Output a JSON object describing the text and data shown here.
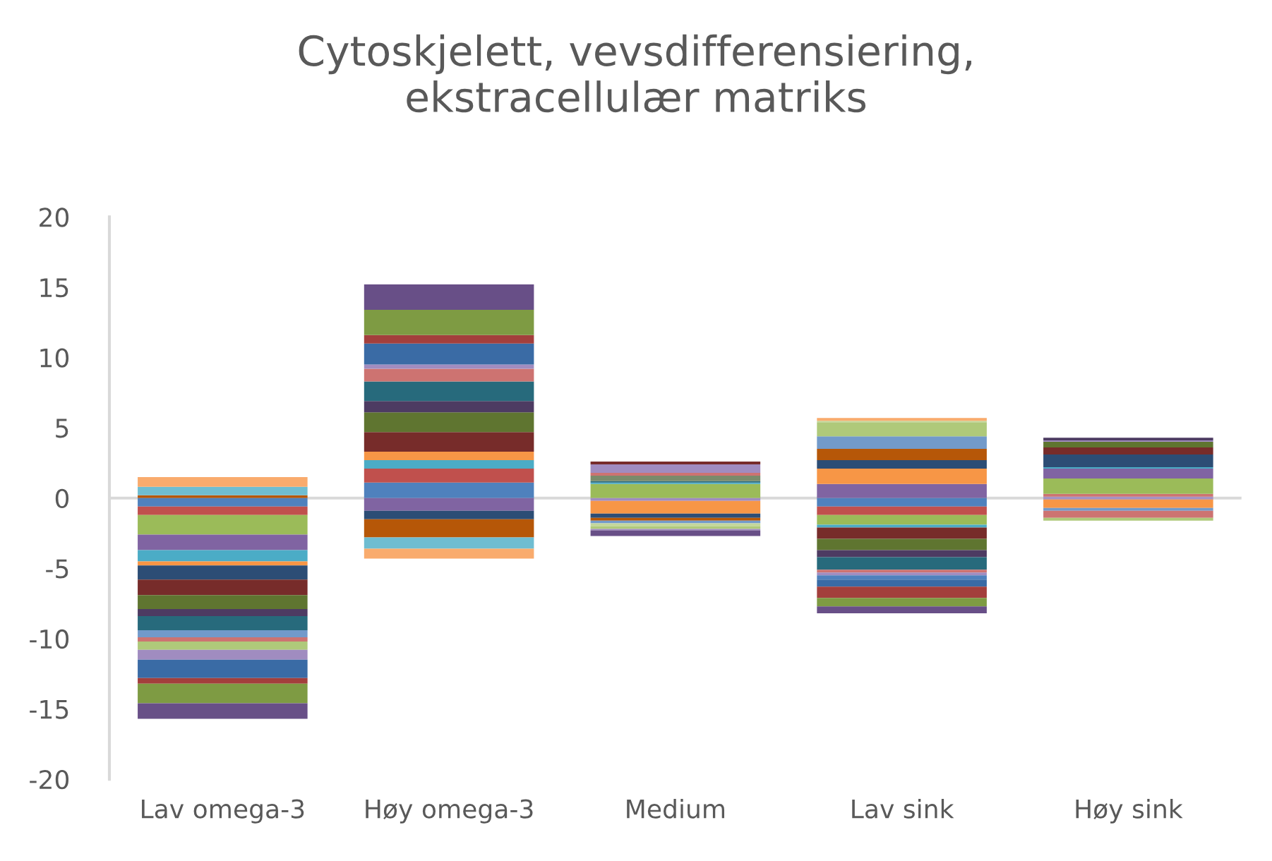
{
  "chart_data": {
    "type": "bar",
    "stacked": true,
    "title": "Cytoskjelett, vevsdifferensiering,\nekstracellulær matriks",
    "categories": [
      "Lav omega-3",
      "Høy omega-3",
      "Medium",
      "Lav sink",
      "Høy sink"
    ],
    "ylim": [
      -20,
      20
    ],
    "yticks": [
      -20,
      -15,
      -10,
      -5,
      0,
      5,
      10,
      15,
      20
    ],
    "grid": false,
    "ref_lines": [
      {
        "axis": "y",
        "value": 0,
        "color": "#d9d9d9"
      }
    ],
    "series": [
      {
        "values": [
          0.2,
          1.1,
          1.0,
          1.0,
          0.1
        ],
        "colors": [
          "#b65708",
          "#4f81bd",
          "#9bbb59",
          "#8064a2",
          "#a08cc0"
        ]
      },
      {
        "values": [
          0.6,
          1.0,
          0.1,
          1.1,
          0.2
        ],
        "colors": [
          "#6fbdd1",
          "#c0504d",
          "#4bacc6",
          "#f79646",
          "#cd7371"
        ]
      },
      {
        "values": [
          0.7,
          0.6,
          0.1,
          0.6,
          1.1
        ],
        "colors": [
          "#f9ab6d",
          "#4bacc6",
          "#276a7c",
          "#2c4d75",
          "#9bbb59"
        ]
      },
      {
        "values": [
          null,
          0.6,
          0.4,
          0.8,
          0.7
        ],
        "colors": [
          null,
          "#f79646",
          "#7a8b6b",
          "#b65708",
          "#8064a2"
        ]
      },
      {
        "values": [
          null,
          1.4,
          0.2,
          0.9,
          0.1
        ],
        "colors": [
          null,
          "#772c2a",
          "#cd7371",
          "#729aca",
          "#4bacc6"
        ]
      },
      {
        "values": [
          null,
          1.4,
          0.6,
          1.0,
          0.9
        ],
        "colors": [
          null,
          "#5f7530",
          "#a08cc0",
          "#afc97a",
          "#2c4d75"
        ]
      },
      {
        "values": [
          null,
          0.8,
          0.2,
          0.1,
          0.5
        ],
        "colors": [
          null,
          "#4d3b62",
          "#772c2a",
          "#c4d79b",
          "#772c2a"
        ]
      },
      {
        "values": [
          null,
          1.4,
          null,
          0.2,
          0.4
        ],
        "colors": [
          null,
          "#276a7c",
          null,
          "#f9ab6d",
          "#5f7530"
        ]
      },
      {
        "values": [
          null,
          0.9,
          null,
          null,
          0.1
        ],
        "colors": [
          null,
          "#cd7371",
          null,
          null,
          "#a08cc0"
        ]
      },
      {
        "values": [
          null,
          0.3,
          null,
          null,
          0.2
        ],
        "colors": [
          null,
          "#a08cc0",
          null,
          null,
          "#4d3b62"
        ]
      },
      {
        "values": [
          null,
          1.5,
          null,
          null,
          null
        ],
        "colors": [
          null,
          "#3a6ba5",
          null,
          null,
          null
        ]
      },
      {
        "values": [
          null,
          0.6,
          null,
          null,
          null
        ],
        "colors": [
          null,
          "#a33f3c",
          null,
          null,
          null
        ]
      },
      {
        "values": [
          null,
          1.8,
          null,
          null,
          null
        ],
        "colors": [
          null,
          "#7e9b43",
          null,
          null,
          null
        ]
      },
      {
        "values": [
          null,
          1.8,
          null,
          null,
          null
        ],
        "colors": [
          null,
          "#684f87",
          null,
          null,
          null
        ]
      },
      {
        "values": [
          -0.6,
          -0.9,
          -0.2,
          -0.6,
          -0.1
        ],
        "colors": [
          "#4f81bd",
          "#8064a2",
          "#a08cc0",
          "#4f81bd",
          "#a08cc0"
        ]
      },
      {
        "values": [
          -0.6,
          -0.6,
          -0.9,
          -0.6,
          -0.6
        ],
        "colors": [
          "#c0504d",
          "#2c4d75",
          "#f79646",
          "#c0504d",
          "#f79646"
        ]
      },
      {
        "values": [
          -1.4,
          -1.3,
          -0.3,
          -0.7,
          -0.2
        ],
        "colors": [
          "#9bbb59",
          "#b65708",
          "#2c4d75",
          "#9bbb59",
          "#729aca"
        ]
      },
      {
        "values": [
          -1.1,
          -0.8,
          -0.2,
          -0.2,
          -0.5
        ],
        "colors": [
          "#8064a2",
          "#6fbdd1",
          "#b65708",
          "#4bacc6",
          "#cd7371"
        ]
      },
      {
        "values": [
          -0.8,
          -0.7,
          -0.2,
          -0.8,
          -0.2
        ],
        "colors": [
          "#4bacc6",
          "#f9ab6d",
          "#729aca",
          "#772c2a",
          "#afc97a"
        ]
      },
      {
        "values": [
          -0.3,
          null,
          -0.2,
          -0.8,
          null
        ],
        "colors": [
          "#f79646",
          null,
          "#c4d79b",
          "#5f7530",
          null
        ]
      },
      {
        "values": [
          -1.0,
          null,
          -0.2,
          -0.5,
          null
        ],
        "colors": [
          "#2c4d75",
          null,
          "#afc97a",
          "#4d3b62",
          null
        ]
      },
      {
        "values": [
          -1.1,
          null,
          -0.1,
          -0.9,
          null
        ],
        "colors": [
          "#772c2a",
          null,
          "#a08cc0",
          "#276a7c",
          null
        ]
      },
      {
        "values": [
          -1.0,
          null,
          -0.4,
          -0.2,
          null
        ],
        "colors": [
          "#5f7530",
          null,
          "#684f87",
          "#cd7371",
          null
        ]
      },
      {
        "values": [
          -0.5,
          null,
          null,
          -0.2,
          null
        ],
        "colors": [
          "#4d3b62",
          null,
          null,
          "#a08cc0",
          null
        ]
      },
      {
        "values": [
          -1.0,
          null,
          null,
          -0.3,
          null
        ],
        "colors": [
          "#276a7c",
          null,
          null,
          "#4f81bd",
          null
        ]
      },
      {
        "values": [
          -0.5,
          null,
          null,
          -0.5,
          null
        ],
        "colors": [
          "#729aca",
          null,
          null,
          "#3a6ba5",
          null
        ]
      },
      {
        "values": [
          -0.3,
          null,
          null,
          -0.8,
          null
        ],
        "colors": [
          "#cd7371",
          null,
          null,
          "#a33f3c",
          null
        ]
      },
      {
        "values": [
          -0.6,
          null,
          null,
          -0.6,
          null
        ],
        "colors": [
          "#afc97a",
          null,
          null,
          "#7e9b43",
          null
        ]
      },
      {
        "values": [
          -0.7,
          null,
          null,
          -0.5,
          null
        ],
        "colors": [
          "#a08cc0",
          null,
          null,
          "#684f87",
          null
        ]
      },
      {
        "values": [
          -1.3,
          null,
          null,
          null,
          null
        ],
        "colors": [
          "#3a6ba5",
          null,
          null,
          null,
          null
        ]
      },
      {
        "values": [
          -0.4,
          null,
          null,
          null,
          null
        ],
        "colors": [
          "#a33f3c",
          null,
          null,
          null,
          null
        ]
      },
      {
        "values": [
          -1.4,
          null,
          null,
          null,
          null
        ],
        "colors": [
          "#7e9b43",
          null,
          null,
          null,
          null
        ]
      },
      {
        "values": [
          -1.1,
          null,
          null,
          null,
          null
        ],
        "colors": [
          "#684f87",
          null,
          null,
          null,
          null
        ]
      }
    ]
  }
}
